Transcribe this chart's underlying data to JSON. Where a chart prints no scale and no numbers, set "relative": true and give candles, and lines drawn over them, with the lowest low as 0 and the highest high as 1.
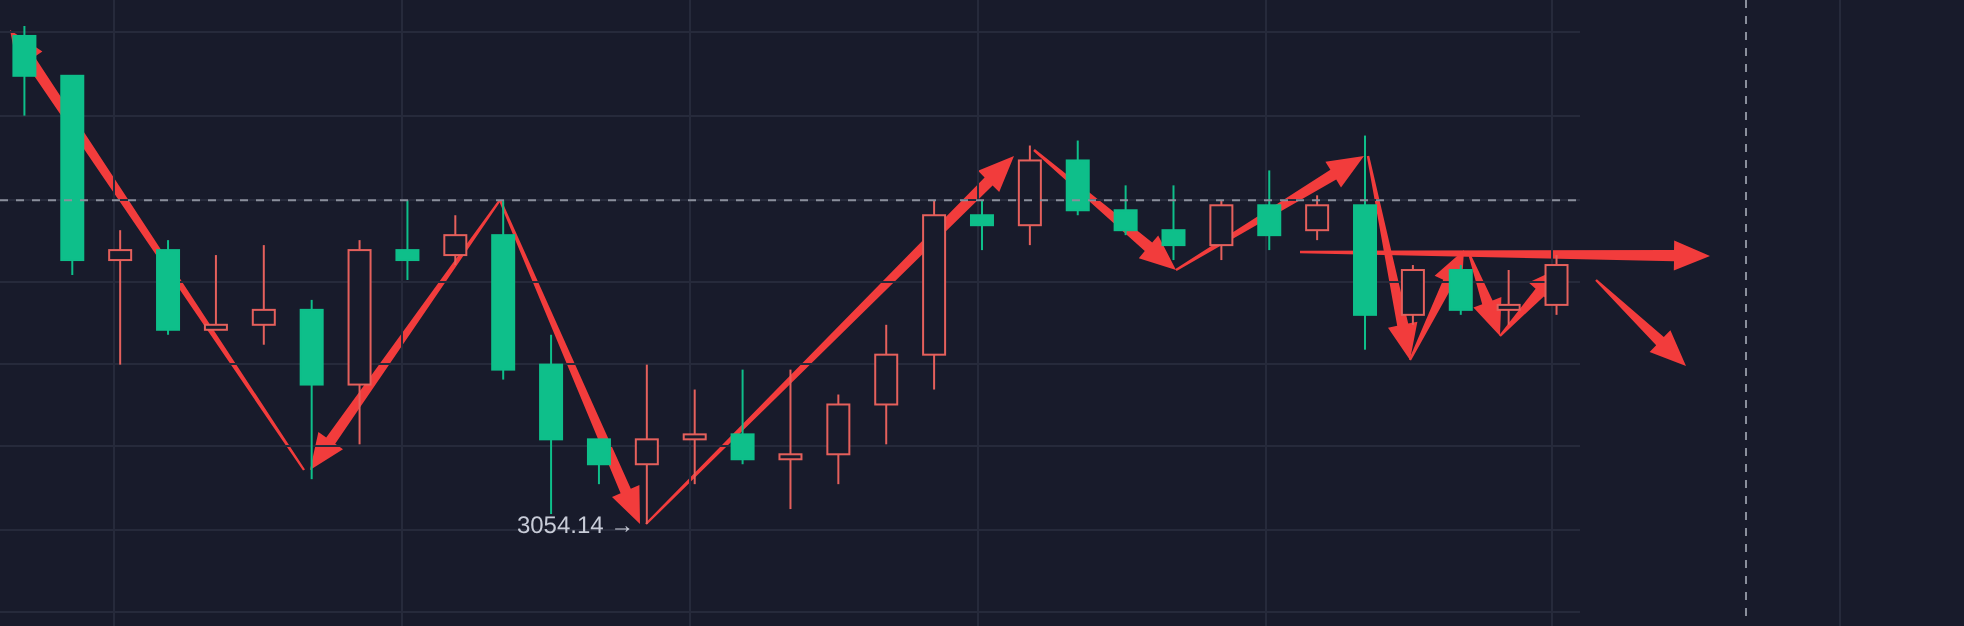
{
  "chart_data": {
    "type": "candlestick",
    "relative": true,
    "grid": true,
    "categories": [
      null,
      null,
      null,
      null,
      null,
      null,
      null,
      null,
      null,
      null,
      null,
      null,
      null,
      null,
      null,
      null,
      null,
      null,
      null,
      null,
      null,
      null,
      null,
      null,
      null,
      null,
      null,
      null,
      null,
      null,
      null,
      null,
      null
    ],
    "ohlc": [
      [
        0.98,
        1.0,
        0.82,
        0.9
      ],
      [
        0.9,
        0.9,
        0.5,
        0.53
      ],
      [
        0.53,
        0.59,
        0.32,
        0.55
      ],
      [
        0.55,
        0.57,
        0.38,
        0.39
      ],
      [
        0.39,
        0.54,
        0.39,
        0.4
      ],
      [
        0.4,
        0.56,
        0.36,
        0.43
      ],
      [
        0.43,
        0.45,
        0.09,
        0.28
      ],
      [
        0.28,
        0.57,
        0.16,
        0.55
      ],
      [
        0.55,
        0.65,
        0.49,
        0.53
      ],
      [
        0.54,
        0.62,
        0.52,
        0.58
      ],
      [
        0.58,
        0.65,
        0.29,
        0.31
      ],
      [
        0.32,
        0.38,
        0.02,
        0.17
      ],
      [
        0.17,
        0.17,
        0.08,
        0.12
      ],
      [
        0.12,
        0.32,
        0.0,
        0.17
      ],
      [
        0.17,
        0.27,
        0.08,
        0.18
      ],
      [
        0.18,
        0.31,
        0.12,
        0.13
      ],
      [
        0.13,
        0.31,
        0.03,
        0.14
      ],
      [
        0.14,
        0.26,
        0.08,
        0.24
      ],
      [
        0.24,
        0.4,
        0.16,
        0.34
      ],
      [
        0.34,
        0.65,
        0.27,
        0.62
      ],
      [
        0.62,
        0.65,
        0.55,
        0.6
      ],
      [
        0.6,
        0.76,
        0.56,
        0.73
      ],
      [
        0.73,
        0.77,
        0.62,
        0.63
      ],
      [
        0.63,
        0.68,
        0.58,
        0.59
      ],
      [
        0.59,
        0.68,
        0.53,
        0.56
      ],
      [
        0.56,
        0.65,
        0.53,
        0.64
      ],
      [
        0.64,
        0.71,
        0.55,
        0.58
      ],
      [
        0.59,
        0.66,
        0.57,
        0.64
      ],
      [
        0.64,
        0.78,
        0.35,
        0.42
      ],
      [
        0.42,
        0.52,
        0.4,
        0.51
      ],
      [
        0.51,
        0.52,
        0.42,
        0.43
      ],
      [
        0.43,
        0.51,
        0.4,
        0.44
      ],
      [
        0.44,
        0.54,
        0.42,
        0.52
      ]
    ],
    "colors": [
      "#0ebf8a",
      "#0ebf8a",
      "#e5605c",
      "#0ebf8a",
      "#e5605c",
      "#e5605c",
      "#0ebf8a",
      "#e5605c",
      "#0ebf8a",
      "#e5605c",
      "#0ebf8a",
      "#0ebf8a",
      "#0ebf8a",
      "#e5605c",
      "#e5605c",
      "#0ebf8a",
      "#e5605c",
      "#e5605c",
      "#e5605c",
      "#e5605c",
      "#0ebf8a",
      "#e5605c",
      "#0ebf8a",
      "#0ebf8a",
      "#0ebf8a",
      "#e5605c",
      "#0ebf8a",
      "#e5605c",
      "#0ebf8a",
      "#e5605c",
      "#0ebf8a",
      "#e5605c",
      "#e5605c"
    ],
    "ref_lines": [
      {
        "axis": "y",
        "value": 0.65,
        "color": "#8a8f9c",
        "line_style": "dashed"
      }
    ],
    "annotations": [
      "3054.14 →"
    ]
  }
}
